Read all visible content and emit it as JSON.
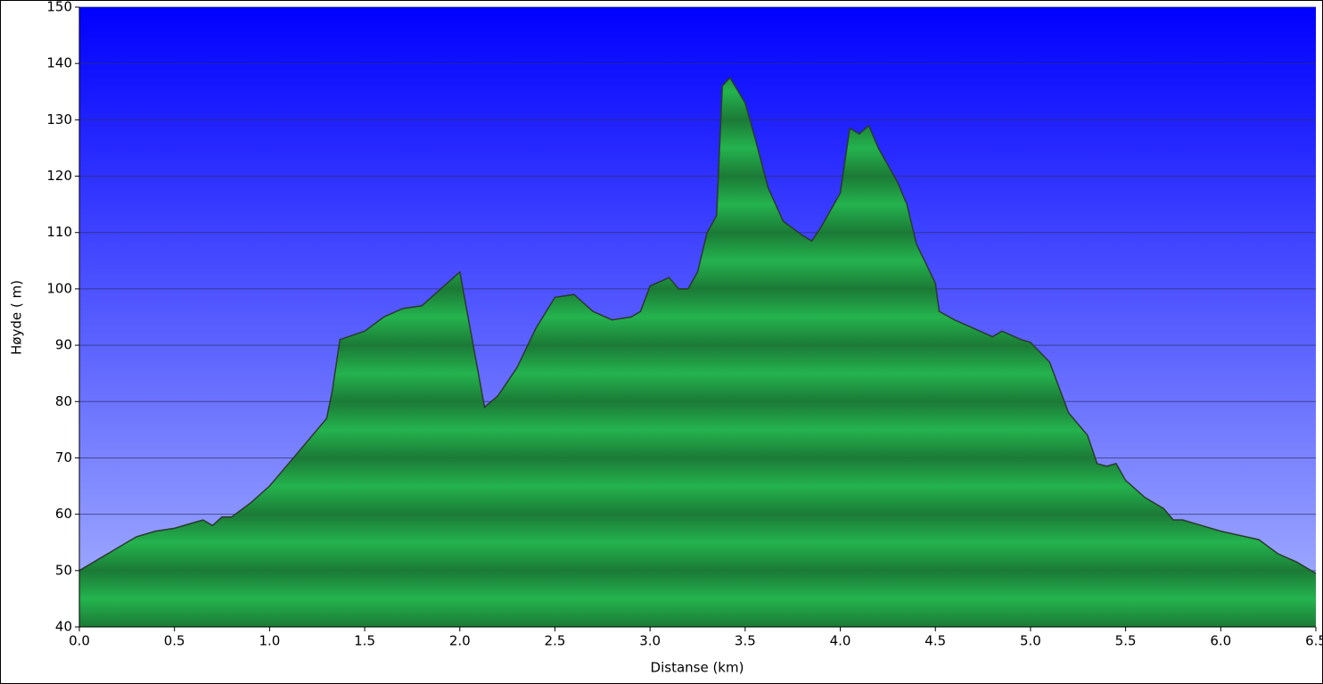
{
  "chart_data": {
    "type": "area",
    "xlabel": "Distanse  (km)",
    "ylabel": "Høyde ( m)",
    "color": "#22ac4b",
    "x": [
      0.0,
      0.1,
      0.2,
      0.3,
      0.4,
      0.5,
      0.6,
      0.65,
      0.7,
      0.75,
      0.8,
      0.9,
      1.0,
      1.1,
      1.2,
      1.3,
      1.33,
      1.37,
      1.5,
      1.6,
      1.7,
      1.8,
      1.9,
      2.0,
      2.13,
      2.2,
      2.3,
      2.4,
      2.5,
      2.6,
      2.7,
      2.8,
      2.9,
      2.95,
      3.0,
      3.1,
      3.15,
      3.2,
      3.25,
      3.3,
      3.35,
      3.38,
      3.42,
      3.5,
      3.55,
      3.62,
      3.7,
      3.8,
      3.85,
      3.9,
      4.0,
      4.05,
      4.1,
      4.15,
      4.2,
      4.3,
      4.35,
      4.4,
      4.5,
      4.52,
      4.6,
      4.7,
      4.8,
      4.85,
      4.95,
      5.0,
      5.1,
      5.2,
      5.3,
      5.35,
      5.4,
      5.45,
      5.5,
      5.6,
      5.7,
      5.75,
      5.8,
      5.9,
      6.0,
      6.2,
      6.3,
      6.4,
      6.5
    ],
    "values": [
      50,
      52,
      54,
      56,
      57,
      57.5,
      58.5,
      59,
      58,
      59.5,
      59.5,
      62,
      65,
      69,
      73,
      77,
      82,
      91,
      92.5,
      95,
      96.5,
      97,
      100,
      103,
      79,
      81,
      86,
      93,
      98.5,
      99,
      96,
      94.5,
      95,
      96,
      100.5,
      102,
      100,
      100,
      103,
      110,
      113,
      136,
      137.5,
      133,
      127,
      118,
      112,
      109.5,
      108.5,
      111,
      117,
      128.5,
      127.5,
      129,
      125,
      119,
      115,
      108,
      101,
      96,
      94.5,
      93,
      91.5,
      92.5,
      91,
      90.5,
      87,
      78,
      74,
      69,
      68.5,
      69,
      66,
      63,
      61,
      59,
      59,
      58,
      57,
      55.5,
      53,
      51.5,
      49.5
    ],
    "xlim": [
      0,
      6.5
    ],
    "ylim": [
      40,
      150
    ],
    "xticks": [
      {
        "value": 0,
        "label": "0.0"
      },
      0.5,
      {
        "value": 1,
        "label": "1.0"
      },
      1.5,
      {
        "value": 2,
        "label": "2.0"
      },
      2.5,
      {
        "value": 3,
        "label": "3.0"
      },
      3.5,
      {
        "value": 4,
        "label": "4.0"
      },
      4.5,
      {
        "value": 5,
        "label": "5.0"
      },
      5.5,
      {
        "value": 6,
        "label": "6.0"
      },
      6.5
    ],
    "yticks": [
      40,
      50,
      60,
      70,
      80,
      90,
      100,
      110,
      120,
      130,
      140,
      150
    ],
    "grid": true
  }
}
